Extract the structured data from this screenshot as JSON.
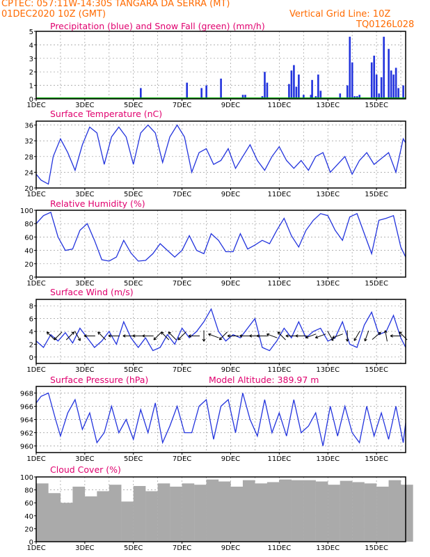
{
  "header": {
    "line1": "CPTEC:   057:11W-14:30S   TANGARA DA SERRA (MT)",
    "date": "01DEC2020 10Z (GMT)",
    "grid_note": "Vertical Grid Line: 10Z",
    "code": "TQ0126L028"
  },
  "x_ticks": [
    "1DEC",
    "3DEC",
    "5DEC",
    "7DEC",
    "9DEC",
    "11DEC",
    "13DEC",
    "15DEC"
  ],
  "colors": {
    "header": "#ff6a00",
    "title": "#e0006e",
    "series": "#2233dd",
    "snow": "#00aa00",
    "cloud": "#aaaaaa"
  },
  "chart_data": [
    {
      "id": "precip",
      "type": "bar",
      "title": "Precipitation (blue) and Snow Fall (green) (mm/h)",
      "ylim": [
        0,
        5
      ],
      "yticks": [
        "0",
        "1",
        "2",
        "3",
        "4",
        "5"
      ],
      "x_unit": "day",
      "xlim": [
        0,
        15.2
      ],
      "x": [
        4.3,
        6.2,
        6.8,
        7.0,
        7.6,
        8.5,
        8.6,
        9.3,
        9.4,
        9.5,
        10.4,
        10.5,
        10.6,
        10.7,
        10.8,
        11.0,
        11.3,
        11.35,
        11.5,
        11.6,
        11.7,
        12.5,
        12.8,
        12.9,
        13.0,
        13.1,
        13.2,
        13.3,
        13.8,
        13.9,
        14.0,
        14.1,
        14.2,
        14.3,
        14.5,
        14.6,
        14.7,
        14.8,
        14.9,
        15.1
      ],
      "values": [
        0.8,
        1.2,
        0.8,
        1.0,
        1.5,
        0.3,
        0.3,
        0.2,
        2.0,
        1.2,
        1.1,
        2.1,
        2.5,
        0.9,
        1.8,
        0.3,
        0.3,
        1.4,
        0.2,
        1.8,
        0.6,
        0.4,
        1.0,
        4.6,
        2.7,
        0.2,
        0.2,
        0.3,
        2.7,
        3.2,
        1.8,
        0.4,
        1.6,
        4.6,
        3.7,
        2.1,
        1.8,
        2.3,
        0.8,
        1.0
      ],
      "snow": 0
    },
    {
      "id": "temp",
      "type": "line",
      "title": "Surface Temperature (nC)",
      "ylim": [
        20,
        37
      ],
      "yticks": [
        "20",
        "24",
        "28",
        "32",
        "36"
      ],
      "x_unit": "day",
      "xlim": [
        0,
        15.2
      ],
      "x": [
        0,
        0.2,
        0.5,
        0.7,
        1.0,
        1.3,
        1.6,
        1.9,
        2.2,
        2.5,
        2.8,
        3.1,
        3.4,
        3.7,
        4.0,
        4.3,
        4.6,
        4.9,
        5.2,
        5.5,
        5.8,
        6.1,
        6.4,
        6.7,
        7.0,
        7.3,
        7.6,
        7.9,
        8.2,
        8.5,
        8.8,
        9.1,
        9.4,
        9.7,
        10.0,
        10.3,
        10.6,
        10.9,
        11.2,
        11.5,
        11.8,
        12.1,
        12.4,
        12.7,
        13.0,
        13.3,
        13.6,
        13.9,
        14.2,
        14.5,
        14.8,
        15.1,
        15.2
      ],
      "values": [
        23.5,
        22,
        21,
        28,
        32.5,
        29,
        24.5,
        31,
        35.5,
        34,
        26,
        33,
        35.5,
        33,
        26,
        34,
        36,
        34,
        26.5,
        33,
        36,
        33,
        24,
        29,
        30,
        26,
        27,
        30,
        25,
        28,
        31,
        27,
        24.5,
        28,
        30.5,
        27,
        25,
        27,
        24.5,
        28,
        29,
        24,
        26,
        28,
        23.5,
        27,
        29,
        26,
        27.5,
        29,
        24,
        32.5,
        31.5
      ]
    },
    {
      "id": "rh",
      "type": "line",
      "title": "Relative Humidity (%)",
      "ylim": [
        0,
        100
      ],
      "yticks": [
        "0",
        "20",
        "40",
        "60",
        "80",
        "100"
      ],
      "x_unit": "day",
      "xlim": [
        0,
        15.2
      ],
      "x": [
        0,
        0.3,
        0.6,
        0.9,
        1.2,
        1.5,
        1.8,
        2.1,
        2.4,
        2.7,
        3.0,
        3.3,
        3.6,
        3.9,
        4.2,
        4.5,
        4.8,
        5.1,
        5.4,
        5.7,
        6.0,
        6.3,
        6.6,
        6.9,
        7.2,
        7.5,
        7.8,
        8.1,
        8.4,
        8.7,
        9.0,
        9.3,
        9.6,
        9.9,
        10.2,
        10.5,
        10.8,
        11.1,
        11.4,
        11.7,
        12.0,
        12.3,
        12.6,
        12.9,
        13.2,
        13.5,
        13.8,
        14.1,
        14.4,
        14.7,
        15.0,
        15.2
      ],
      "values": [
        80,
        92,
        97,
        60,
        40,
        42,
        70,
        80,
        55,
        26,
        24,
        30,
        55,
        36,
        24,
        25,
        35,
        50,
        40,
        30,
        40,
        62,
        40,
        35,
        65,
        55,
        38,
        38,
        65,
        42,
        48,
        55,
        50,
        70,
        88,
        62,
        45,
        70,
        85,
        95,
        92,
        70,
        55,
        90,
        95,
        65,
        35,
        85,
        88,
        92,
        45,
        30
      ]
    },
    {
      "id": "wind",
      "type": "line",
      "title": "Surface Wind (m/s)",
      "ylim": [
        -1,
        9
      ],
      "yticks": [
        "0",
        "2",
        "4",
        "6",
        "8"
      ],
      "x_unit": "day",
      "xlim": [
        0,
        15.2
      ],
      "x": [
        0,
        0.3,
        0.6,
        0.9,
        1.2,
        1.5,
        1.8,
        2.1,
        2.4,
        2.7,
        3.0,
        3.3,
        3.6,
        3.9,
        4.2,
        4.5,
        4.8,
        5.1,
        5.4,
        5.7,
        6.0,
        6.3,
        6.6,
        6.9,
        7.2,
        7.5,
        7.8,
        8.1,
        8.4,
        8.7,
        9.0,
        9.3,
        9.6,
        9.9,
        10.2,
        10.5,
        10.8,
        11.1,
        11.4,
        11.7,
        12.0,
        12.3,
        12.6,
        12.9,
        13.2,
        13.5,
        13.8,
        14.1,
        14.4,
        14.7,
        15.0,
        15.2
      ],
      "values": [
        2.5,
        1.5,
        3.5,
        2.5,
        3.8,
        2.2,
        4.5,
        3.0,
        1.5,
        2.5,
        4.0,
        2.0,
        5.5,
        3.0,
        1.5,
        3.0,
        1.0,
        1.5,
        3.5,
        2.0,
        4.5,
        3.0,
        4.0,
        5.5,
        7.5,
        4.0,
        2.5,
        3.5,
        3.0,
        4.5,
        6.0,
        1.5,
        1.0,
        2.5,
        4.5,
        3.0,
        5.5,
        3.0,
        4.0,
        4.5,
        2.5,
        3.0,
        5.5,
        2.0,
        1.5,
        5.0,
        7.0,
        3.5,
        4.0,
        6.5,
        3.0,
        1.5
      ],
      "vectors": [
        [
          0.6,
          135
        ],
        [
          0.9,
          225
        ],
        [
          1.4,
          45
        ],
        [
          1.7,
          300
        ],
        [
          2.2,
          180
        ],
        [
          2.7,
          135
        ],
        [
          3.2,
          180
        ],
        [
          3.8,
          180
        ],
        [
          4.2,
          180
        ],
        [
          4.6,
          180
        ],
        [
          5.0,
          225
        ],
        [
          5.3,
          135
        ],
        [
          5.6,
          135
        ],
        [
          6.0,
          225
        ],
        [
          6.5,
          180
        ],
        [
          6.9,
          270
        ],
        [
          7.3,
          160
        ],
        [
          7.7,
          225
        ],
        [
          8.1,
          180
        ],
        [
          8.6,
          180
        ],
        [
          9.0,
          180
        ],
        [
          9.3,
          180
        ],
        [
          9.7,
          160
        ],
        [
          10.1,
          135
        ],
        [
          10.5,
          180
        ],
        [
          10.9,
          180
        ],
        [
          11.3,
          200
        ],
        [
          11.7,
          200
        ],
        [
          12.1,
          300
        ],
        [
          12.4,
          200
        ],
        [
          12.8,
          270
        ],
        [
          13.2,
          240
        ],
        [
          13.6,
          250
        ],
        [
          14.0,
          40
        ],
        [
          14.4,
          100
        ],
        [
          14.8,
          180
        ],
        [
          15.1,
          135
        ]
      ]
    },
    {
      "id": "press",
      "type": "line",
      "title": "Surface Pressure (hPa)",
      "subtitle": "Model Altitude: 389.97 m",
      "ylim": [
        959,
        969
      ],
      "yticks": [
        "960",
        "962",
        "964",
        "966",
        "968"
      ],
      "x_unit": "day",
      "xlim": [
        0,
        15.2
      ],
      "x": [
        0,
        0.2,
        0.5,
        0.8,
        1.0,
        1.3,
        1.6,
        1.9,
        2.2,
        2.5,
        2.8,
        3.1,
        3.4,
        3.7,
        4.0,
        4.3,
        4.6,
        4.9,
        5.2,
        5.5,
        5.8,
        6.1,
        6.4,
        6.7,
        7.0,
        7.3,
        7.6,
        7.9,
        8.2,
        8.5,
        8.8,
        9.1,
        9.4,
        9.7,
        10.0,
        10.3,
        10.6,
        10.9,
        11.2,
        11.5,
        11.8,
        12.1,
        12.4,
        12.7,
        13.0,
        13.3,
        13.6,
        13.9,
        14.2,
        14.5,
        14.8,
        15.1,
        15.2
      ],
      "values": [
        966.5,
        967.5,
        968,
        964,
        961.5,
        965,
        967,
        962.5,
        965,
        960.5,
        962,
        966,
        962,
        964,
        961,
        965.5,
        962,
        966.5,
        960.5,
        963,
        966,
        962,
        962,
        966,
        967,
        961,
        966,
        967,
        962,
        968,
        964,
        961.5,
        967,
        962,
        965,
        961.5,
        967,
        962,
        963,
        965,
        960,
        966,
        961.5,
        966,
        962,
        960.5,
        966,
        961.5,
        965,
        961,
        966,
        960.5,
        963.5
      ]
    },
    {
      "id": "cloud",
      "type": "bar",
      "title": "Cloud Cover (%)",
      "ylim": [
        0,
        100
      ],
      "yticks": [
        "0",
        "20",
        "40",
        "60",
        "80",
        "100"
      ],
      "x_unit": "day",
      "xlim": [
        0,
        15.2
      ],
      "x": [
        0,
        0.5,
        1.0,
        1.5,
        2.0,
        2.5,
        3.0,
        3.5,
        4.0,
        4.5,
        5.0,
        5.5,
        6.0,
        6.5,
        7.0,
        7.5,
        8.0,
        8.5,
        9.0,
        9.5,
        10.0,
        10.5,
        11.0,
        11.5,
        12.0,
        12.5,
        13.0,
        13.5,
        14.0,
        14.5,
        15.0
      ],
      "values": [
        90,
        75,
        60,
        85,
        70,
        78,
        88,
        62,
        86,
        78,
        90,
        85,
        90,
        88,
        96,
        93,
        85,
        95,
        90,
        92,
        96,
        95,
        95,
        93,
        88,
        94,
        92,
        90,
        85,
        95,
        88
      ]
    }
  ]
}
